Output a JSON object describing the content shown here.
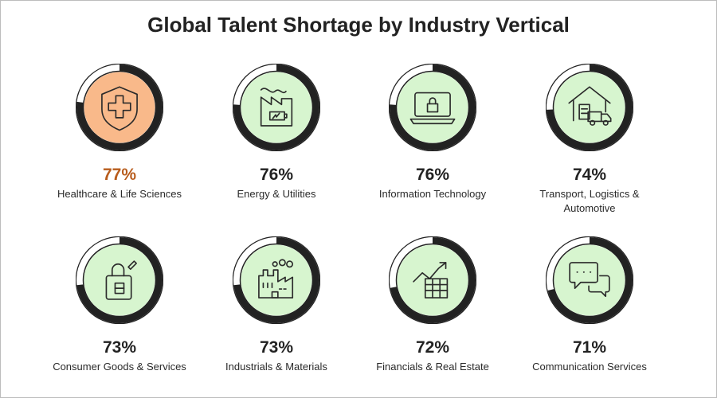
{
  "title": "Global Talent Shortage by Industry Vertical",
  "colors": {
    "ring_track": "#ffffff",
    "ring_outline": "#222222",
    "ring_arc": "#222222",
    "fill_default": "#d7f5cf",
    "fill_highlight": "#f9b98a",
    "highlight_text": "#b85c1c"
  },
  "chart_data": {
    "type": "radial-progress",
    "unit": "%",
    "items": [
      {
        "label": "Healthcare & Life Sciences",
        "value": 77,
        "display": "77%",
        "icon": "shield-cross-icon",
        "highlight": true
      },
      {
        "label": "Energy & Utilities",
        "value": 76,
        "display": "76%",
        "icon": "factory-battery-icon",
        "highlight": false
      },
      {
        "label": "Information Technology",
        "value": 76,
        "display": "76%",
        "icon": "laptop-lock-icon",
        "highlight": false
      },
      {
        "label": "Transport, Logistics & Automotive",
        "value": 74,
        "display": "74%",
        "icon": "warehouse-truck-icon",
        "highlight": false
      },
      {
        "label": "Consumer Goods & Services",
        "value": 73,
        "display": "73%",
        "icon": "shopping-bag-icon",
        "highlight": false
      },
      {
        "label": "Industrials & Materials",
        "value": 73,
        "display": "73%",
        "icon": "industrial-plant-icon",
        "highlight": false
      },
      {
        "label": "Financials & Real Estate",
        "value": 72,
        "display": "72%",
        "icon": "finance-chart-icon",
        "highlight": false
      },
      {
        "label": "Communication Services",
        "value": 71,
        "display": "71%",
        "icon": "chat-bubbles-icon",
        "highlight": false
      }
    ]
  }
}
